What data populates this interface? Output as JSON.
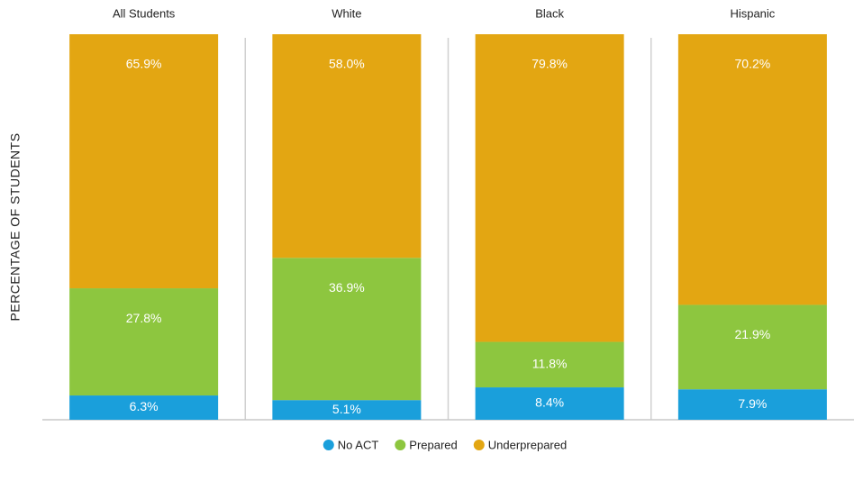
{
  "chart_data": {
    "type": "stacked_bar",
    "ylabel": "PERCENTAGE OF STUDENTS",
    "categories": [
      "All Students",
      "White",
      "Black",
      "Hispanic"
    ],
    "ylim": [
      0,
      100
    ],
    "series": [
      {
        "name": "No ACT",
        "color": "#1a9fdb",
        "values": [
          6.3,
          5.1,
          8.4,
          7.9
        ],
        "value_labels": [
          "6.3%",
          "5.1%",
          "8.4%",
          "7.9%"
        ]
      },
      {
        "name": "Prepared",
        "color": "#8dc63f",
        "values": [
          27.8,
          36.9,
          11.8,
          21.9
        ],
        "value_labels": [
          "27.8%",
          "36.9%",
          "11.8%",
          "21.9%"
        ]
      },
      {
        "name": "Underprepared",
        "color": "#e3a612",
        "values": [
          65.9,
          58.0,
          79.8,
          70.2
        ],
        "value_labels": [
          "65.9%",
          "58.0%",
          "79.8%",
          "70.2%"
        ]
      }
    ],
    "legend": "bottom"
  }
}
